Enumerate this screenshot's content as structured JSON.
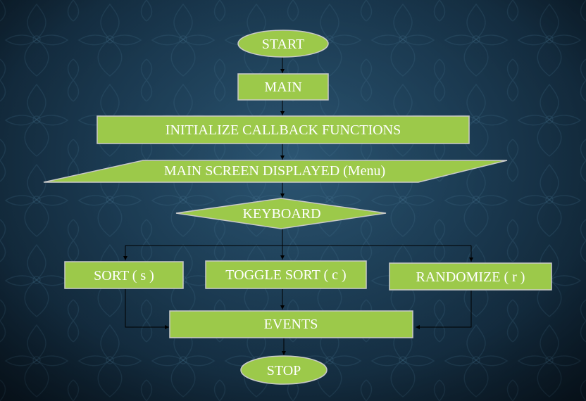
{
  "diagram": {
    "nodes": {
      "start": "START",
      "main": "MAIN",
      "init": "INITIALIZE CALLBACK FUNCTIONS",
      "display": "MAIN SCREEN DISPLAYED (Menu)",
      "keyboard": "KEYBOARD",
      "sort": "SORT ( s )",
      "toggle": "TOGGLE SORT ( c )",
      "randomize": "RANDOMIZE ( r )",
      "events": "EVENTS",
      "stop": "STOP"
    },
    "edges": [
      [
        "start",
        "main"
      ],
      [
        "main",
        "init"
      ],
      [
        "init",
        "display"
      ],
      [
        "display",
        "keyboard"
      ],
      [
        "keyboard",
        "sort"
      ],
      [
        "keyboard",
        "toggle"
      ],
      [
        "keyboard",
        "randomize"
      ],
      [
        "sort",
        "events"
      ],
      [
        "toggle",
        "events"
      ],
      [
        "randomize",
        "events"
      ],
      [
        "events",
        "stop"
      ]
    ],
    "colors": {
      "node_fill": "#9cc94a",
      "node_border": "#c9c9c9",
      "text": "#ffffff",
      "edge": "#000000"
    }
  }
}
